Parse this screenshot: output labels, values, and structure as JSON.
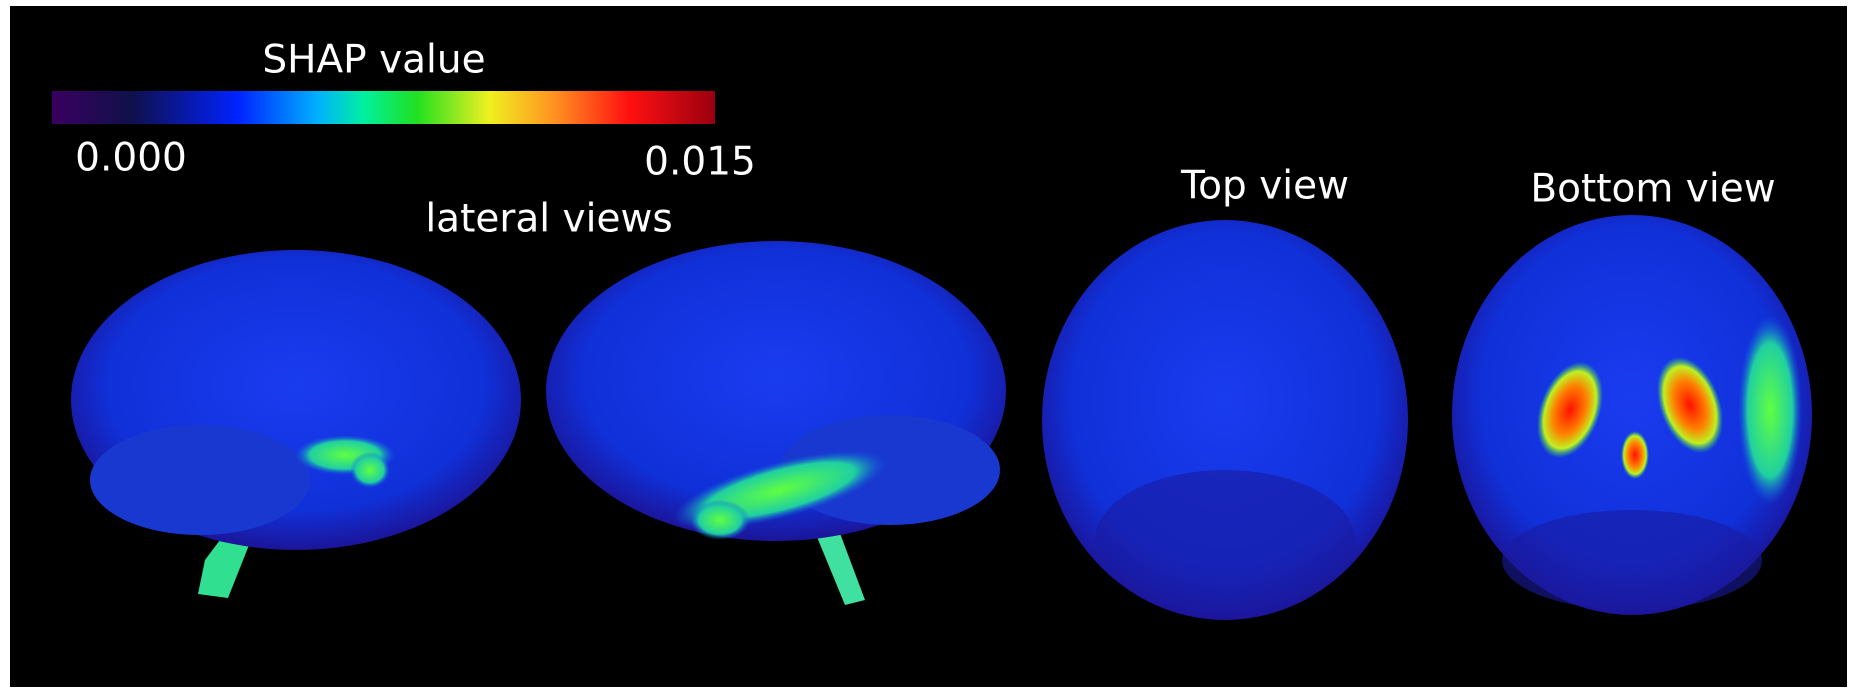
{
  "colorbar": {
    "title": "SHAP value",
    "min_label": "0.000",
    "max_label": "0.015"
  },
  "views": {
    "lateral": "lateral views",
    "top": "Top view",
    "bottom": "Bottom view"
  }
}
